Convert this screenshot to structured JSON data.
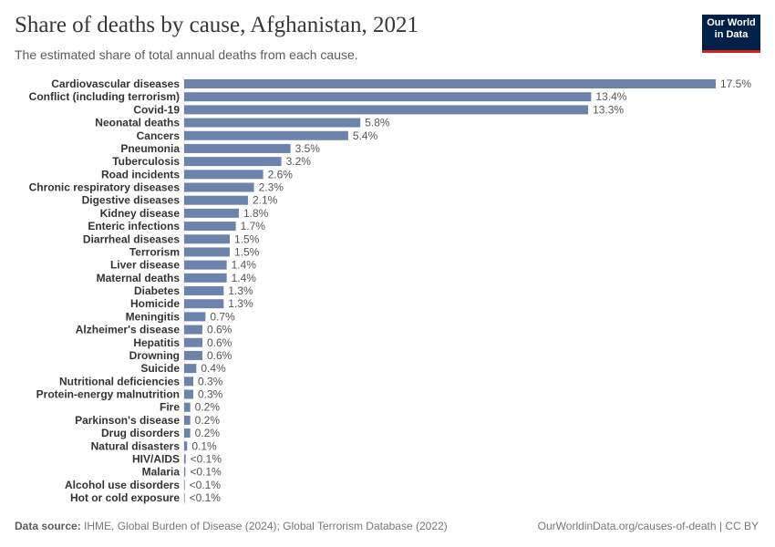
{
  "header": {
    "title": "Share of deaths by cause, Afghanistan, 2021",
    "subtitle": "The estimated share of total annual deaths from each cause.",
    "logo_line1": "Our World",
    "logo_line2": "in Data"
  },
  "footer": {
    "source_label": "Data source:",
    "source": "IHME, Global Burden of Disease (2024); Global Terrorism Database (2022)",
    "url": "OurWorldinData.org/causes-of-death | CC BY"
  },
  "chart_data": {
    "type": "bar",
    "orientation": "horizontal",
    "title": "Share of deaths by cause, Afghanistan, 2021",
    "unit": "%",
    "bar_color": "#6d83ab",
    "xlim": [
      0,
      17.5
    ],
    "grid": false,
    "categories": [
      "Cardiovascular diseases",
      "Conflict (including terrorism)",
      "Covid-19",
      "Neonatal deaths",
      "Cancers",
      "Pneumonia",
      "Tuberculosis",
      "Road incidents",
      "Chronic respiratory diseases",
      "Digestive diseases",
      "Kidney disease",
      "Enteric infections",
      "Diarrheal diseases",
      "Terrorism",
      "Liver disease",
      "Maternal deaths",
      "Diabetes",
      "Homicide",
      "Meningitis",
      "Alzheimer's disease",
      "Hepatitis",
      "Drowning",
      "Suicide",
      "Nutritional deficiencies",
      "Protein-energy malnutrition",
      "Fire",
      "Parkinson's disease",
      "Drug disorders",
      "Natural disasters",
      "HIV/AIDS",
      "Malaria",
      "Alcohol use disorders",
      "Hot or cold exposure"
    ],
    "values": [
      17.5,
      13.4,
      13.3,
      5.8,
      5.4,
      3.5,
      3.2,
      2.6,
      2.3,
      2.1,
      1.8,
      1.7,
      1.5,
      1.5,
      1.4,
      1.4,
      1.3,
      1.3,
      0.7,
      0.6,
      0.6,
      0.6,
      0.4,
      0.3,
      0.3,
      0.2,
      0.2,
      0.2,
      0.1,
      0.05,
      0.04,
      0.02,
      0.01
    ],
    "value_labels": [
      "17.5%",
      "13.4%",
      "13.3%",
      "5.8%",
      "5.4%",
      "3.5%",
      "3.2%",
      "2.6%",
      "2.3%",
      "2.1%",
      "1.8%",
      "1.7%",
      "1.5%",
      "1.5%",
      "1.4%",
      "1.4%",
      "1.3%",
      "1.3%",
      "0.7%",
      "0.6%",
      "0.6%",
      "0.6%",
      "0.4%",
      "0.3%",
      "0.3%",
      "0.2%",
      "0.2%",
      "0.2%",
      "0.1%",
      "<0.1%",
      "<0.1%",
      "<0.1%",
      "<0.1%"
    ]
  }
}
